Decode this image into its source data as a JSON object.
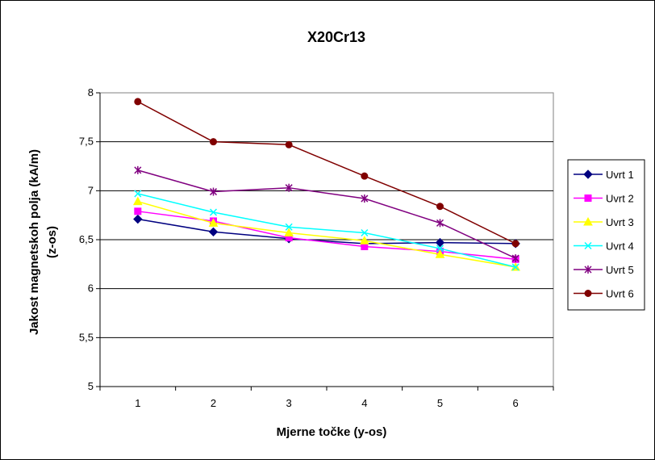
{
  "chart_data": {
    "type": "line",
    "title": "X20Cr13",
    "xlabel": "Mjerne točke (y-os)",
    "ylabel_line1": "Jakost magnetskoh polja (kA/m)",
    "ylabel_line2": "(z-os)",
    "categories": [
      "1",
      "2",
      "3",
      "4",
      "5",
      "6"
    ],
    "y_ticks": [
      "5",
      "5,5",
      "6",
      "6,5",
      "7",
      "7,5",
      "8"
    ],
    "ylim": [
      5,
      8
    ],
    "grid": true,
    "legend_position": "right",
    "series": [
      {
        "name": "Uvrt 1",
        "color": "#000080",
        "marker": "diamond",
        "values": [
          6.71,
          6.58,
          6.51,
          6.46,
          6.47,
          6.46
        ]
      },
      {
        "name": "Uvrt 2",
        "color": "#ff00ff",
        "marker": "square",
        "values": [
          6.79,
          6.69,
          6.52,
          6.43,
          6.38,
          6.3
        ]
      },
      {
        "name": "Uvrt 3",
        "color": "#ffff00",
        "marker": "triangle",
        "values": [
          6.89,
          6.67,
          6.57,
          6.49,
          6.35,
          6.22
        ]
      },
      {
        "name": "Uvrt 4",
        "color": "#00ffff",
        "marker": "x",
        "values": [
          6.97,
          6.78,
          6.63,
          6.57,
          6.41,
          6.22
        ]
      },
      {
        "name": "Uvrt 5",
        "color": "#800080",
        "marker": "star",
        "values": [
          7.21,
          6.99,
          7.03,
          6.92,
          6.67,
          6.31
        ]
      },
      {
        "name": "Uvrt 6",
        "color": "#800000",
        "marker": "circle",
        "values": [
          7.91,
          7.5,
          7.47,
          7.15,
          6.84,
          6.46
        ]
      }
    ]
  }
}
